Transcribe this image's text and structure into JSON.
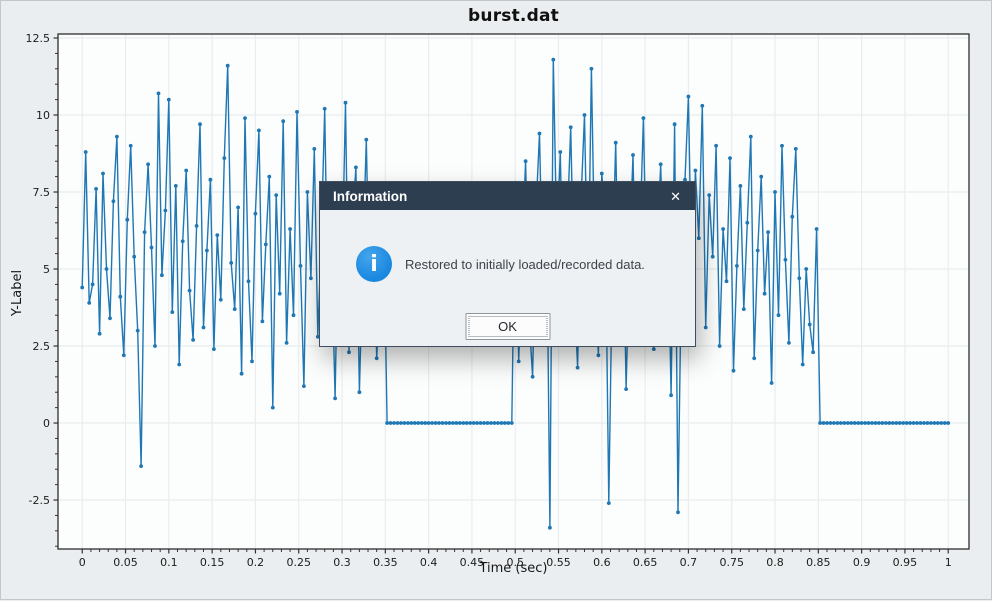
{
  "chart": {
    "title": "burst.dat",
    "xlabel": "Time (sec)",
    "ylabel": "Y-Label"
  },
  "chart_data": {
    "type": "line",
    "title": "burst.dat",
    "xlabel": "Time (sec)",
    "ylabel": "Y-Label",
    "marker": "circle",
    "line_color": "#1f77b4",
    "plot_bg": "#fcfdfd",
    "grid_color": "#e9edf0",
    "grid": true,
    "xlim": [
      -0.028,
      1.024
    ],
    "ylim": [
      -4.09,
      12.63
    ],
    "x_ticks": [
      0,
      0.05,
      0.1,
      0.15,
      0.2,
      0.25,
      0.3,
      0.35,
      0.4,
      0.45,
      0.5,
      0.55,
      0.6,
      0.65,
      0.7,
      0.75,
      0.8,
      0.85,
      0.9,
      0.95,
      1
    ],
    "x_tick_labels": [
      "0",
      "0.05",
      "0.1",
      "0.15",
      "0.2",
      "0.25",
      "0.3",
      "0.35",
      "0.4",
      "0.45",
      "0.5",
      "0.55",
      "0.6",
      "0.65",
      "0.7",
      "0.75",
      "0.8",
      "0.85",
      "0.9",
      "0.95",
      "1"
    ],
    "y_ticks": [
      -2.5,
      0,
      2.5,
      5,
      7.5,
      10,
      12.5
    ],
    "y_tick_labels": [
      "-2.5",
      "0",
      "2.5",
      "5",
      "7.5",
      "10",
      "12.5"
    ],
    "x_minor_step": 0.01,
    "y_minor_step": 0.5,
    "x_start": 0,
    "x_step": 0.004,
    "description": "Burst signal: noise 0-0.35s, zero 0.35-0.5s, noise 0.5-0.85s, zero 0.85-1s",
    "values": [
      4.4,
      8.8,
      3.9,
      4.5,
      7.6,
      2.9,
      8.1,
      5.0,
      3.4,
      7.2,
      9.3,
      4.1,
      2.2,
      6.6,
      9.0,
      5.4,
      3.0,
      -1.4,
      6.2,
      8.4,
      5.7,
      2.5,
      10.7,
      4.8,
      6.9,
      10.5,
      3.6,
      7.7,
      1.9,
      5.9,
      8.2,
      4.3,
      2.7,
      6.4,
      9.7,
      3.1,
      5.6,
      7.9,
      2.4,
      6.1,
      4.0,
      8.6,
      11.6,
      5.2,
      3.7,
      7.0,
      1.6,
      9.9,
      4.6,
      2.0,
      6.8,
      9.5,
      3.3,
      5.8,
      8.0,
      0.5,
      7.4,
      4.2,
      9.8,
      2.6,
      6.3,
      3.5,
      10.1,
      5.1,
      1.2,
      7.5,
      4.7,
      8.9,
      2.8,
      6.0,
      10.2,
      3.2,
      5.5,
      0.8,
      7.3,
      4.9,
      10.4,
      2.3,
      6.5,
      8.3,
      1.0,
      5.3,
      9.2,
      3.8,
      7.1,
      2.1,
      4.5,
      6.7,
      0,
      0,
      0,
      0,
      0,
      0,
      0,
      0,
      0,
      0,
      0,
      0,
      0,
      0,
      0,
      0,
      0,
      0,
      0,
      0,
      0,
      0,
      0,
      0,
      0,
      0,
      0,
      0,
      0,
      0,
      0,
      0,
      0,
      0,
      0,
      0,
      0,
      7.8,
      2.0,
      5.7,
      8.5,
      3.4,
      1.5,
      6.9,
      9.4,
      4.1,
      7.6,
      -3.4,
      11.8,
      5.9,
      8.8,
      3.0,
      6.4,
      9.6,
      4.4,
      1.8,
      7.2,
      10.0,
      3.9,
      11.5,
      5.0,
      2.2,
      8.1,
      6.6,
      -2.6,
      4.8,
      9.1,
      3.3,
      7.8,
      1.1,
      5.5,
      8.7,
      2.9,
      6.1,
      9.9,
      4.0,
      7.0,
      2.4,
      5.8,
      8.4,
      3.6,
      6.8,
      0.9,
      9.7,
      -2.9,
      5.2,
      7.9,
      10.6,
      4.3,
      8.2,
      6.0,
      10.3,
      3.1,
      7.4,
      5.4,
      9.0,
      2.5,
      6.3,
      4.6,
      8.6,
      1.7,
      5.1,
      7.7,
      3.7,
      6.5,
      9.3,
      2.1,
      5.6,
      8.0,
      4.2,
      6.2,
      1.3,
      7.5,
      3.5,
      9.0,
      5.3,
      2.6,
      6.7,
      8.9,
      4.7,
      1.9,
      5.0,
      3.2,
      2.3,
      6.3,
      0,
      0,
      0,
      0,
      0,
      0,
      0,
      0,
      0,
      0,
      0,
      0,
      0,
      0,
      0,
      0,
      0,
      0,
      0,
      0,
      0,
      0,
      0,
      0,
      0,
      0,
      0,
      0,
      0,
      0,
      0,
      0,
      0,
      0,
      0,
      0,
      0,
      0
    ]
  },
  "dialog": {
    "title": "Information",
    "message": "Restored to initially loaded/recorded data.",
    "ok_label": "OK",
    "close_glyph": "✕",
    "icon_glyph": "i",
    "header_color": "#2d3e50",
    "icon_color": "#1a8de2"
  }
}
